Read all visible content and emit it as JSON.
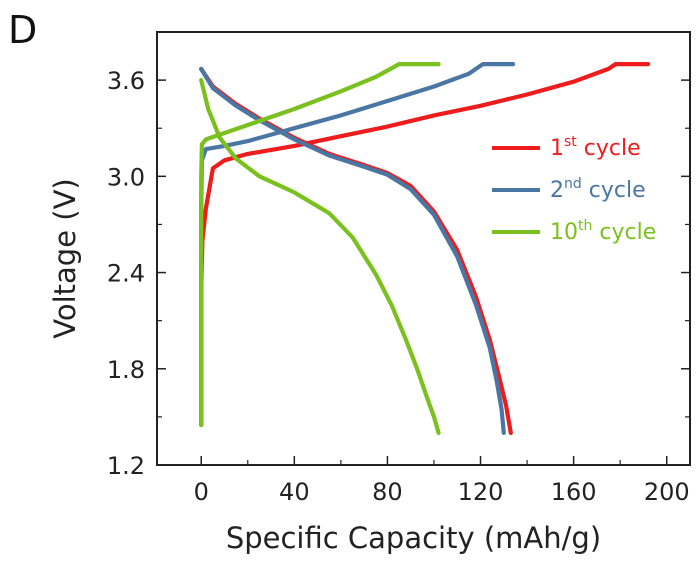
{
  "panel_label": "D",
  "colors": {
    "cycle1": "#ee1c1c",
    "cycle2": "#4a76a4",
    "cycle10": "#7ac01e",
    "axis": "#222222"
  },
  "chart_data": {
    "type": "line",
    "title": "",
    "xlabel": "Specific Capacity (mAh/g)",
    "ylabel": "Voltage (V)",
    "xlim": [
      -19,
      210
    ],
    "ylim": [
      1.2,
      3.9
    ],
    "xticks": [
      0,
      40,
      80,
      120,
      160,
      200
    ],
    "xtick_labels": [
      "0",
      "40",
      "80",
      "120",
      "160",
      "200"
    ],
    "yticks": [
      1.2,
      1.8,
      2.4,
      3.0,
      3.6
    ],
    "ytick_labels": [
      "1.2",
      "1.8",
      "2.4",
      "3.0",
      "3.6"
    ],
    "grid": false,
    "legend_position": "right",
    "series": [
      {
        "name": "1st cycle",
        "legend_base": "1",
        "legend_sup": "st",
        "legend_rest": " cycle",
        "color_key": "cycle1",
        "charge": {
          "x": [
            0,
            0,
            0.5,
            2,
            5,
            10,
            20,
            40,
            60,
            80,
            100,
            120,
            140,
            160,
            175,
            178,
            192
          ],
          "y": [
            1.45,
            2.3,
            2.6,
            2.8,
            3.05,
            3.1,
            3.14,
            3.19,
            3.25,
            3.31,
            3.38,
            3.44,
            3.51,
            3.59,
            3.67,
            3.7,
            3.7
          ]
        },
        "discharge": {
          "x": [
            0,
            5,
            15,
            25,
            40,
            55,
            70,
            80,
            90,
            100,
            110,
            118,
            124,
            128,
            131,
            133
          ],
          "y": [
            3.67,
            3.56,
            3.45,
            3.36,
            3.24,
            3.14,
            3.07,
            3.02,
            2.94,
            2.78,
            2.54,
            2.25,
            1.98,
            1.75,
            1.57,
            1.4
          ]
        }
      },
      {
        "name": "2nd cycle",
        "legend_base": "2",
        "legend_sup": "nd",
        "legend_rest": " cycle",
        "color_key": "cycle2",
        "charge": {
          "x": [
            0,
            0,
            0.3,
            2,
            10,
            20,
            40,
            60,
            80,
            100,
            115,
            121,
            134
          ],
          "y": [
            1.45,
            2.8,
            3.1,
            3.17,
            3.19,
            3.22,
            3.3,
            3.38,
            3.47,
            3.56,
            3.64,
            3.7,
            3.7
          ]
        },
        "discharge": {
          "x": [
            0,
            5,
            15,
            25,
            40,
            55,
            70,
            80,
            90,
            100,
            110,
            118,
            124,
            127,
            129,
            130
          ],
          "y": [
            3.67,
            3.55,
            3.44,
            3.35,
            3.23,
            3.13,
            3.06,
            3.01,
            2.92,
            2.76,
            2.5,
            2.2,
            1.93,
            1.72,
            1.55,
            1.4
          ]
        }
      },
      {
        "name": "10th cycle",
        "legend_base": "10",
        "legend_sup": "th",
        "legend_rest": " cycle",
        "color_key": "cycle10",
        "charge": {
          "x": [
            0,
            0,
            0.3,
            2,
            10,
            20,
            40,
            60,
            75,
            85,
            102
          ],
          "y": [
            1.45,
            3.0,
            3.2,
            3.23,
            3.27,
            3.32,
            3.42,
            3.53,
            3.62,
            3.7,
            3.7
          ]
        },
        "discharge": {
          "x": [
            0,
            3,
            8,
            15,
            25,
            40,
            55,
            65,
            75,
            82,
            88,
            93,
            97,
            100,
            102
          ],
          "y": [
            3.6,
            3.42,
            3.24,
            3.11,
            3.0,
            2.9,
            2.77,
            2.62,
            2.39,
            2.19,
            1.98,
            1.79,
            1.62,
            1.5,
            1.4
          ]
        }
      }
    ]
  }
}
